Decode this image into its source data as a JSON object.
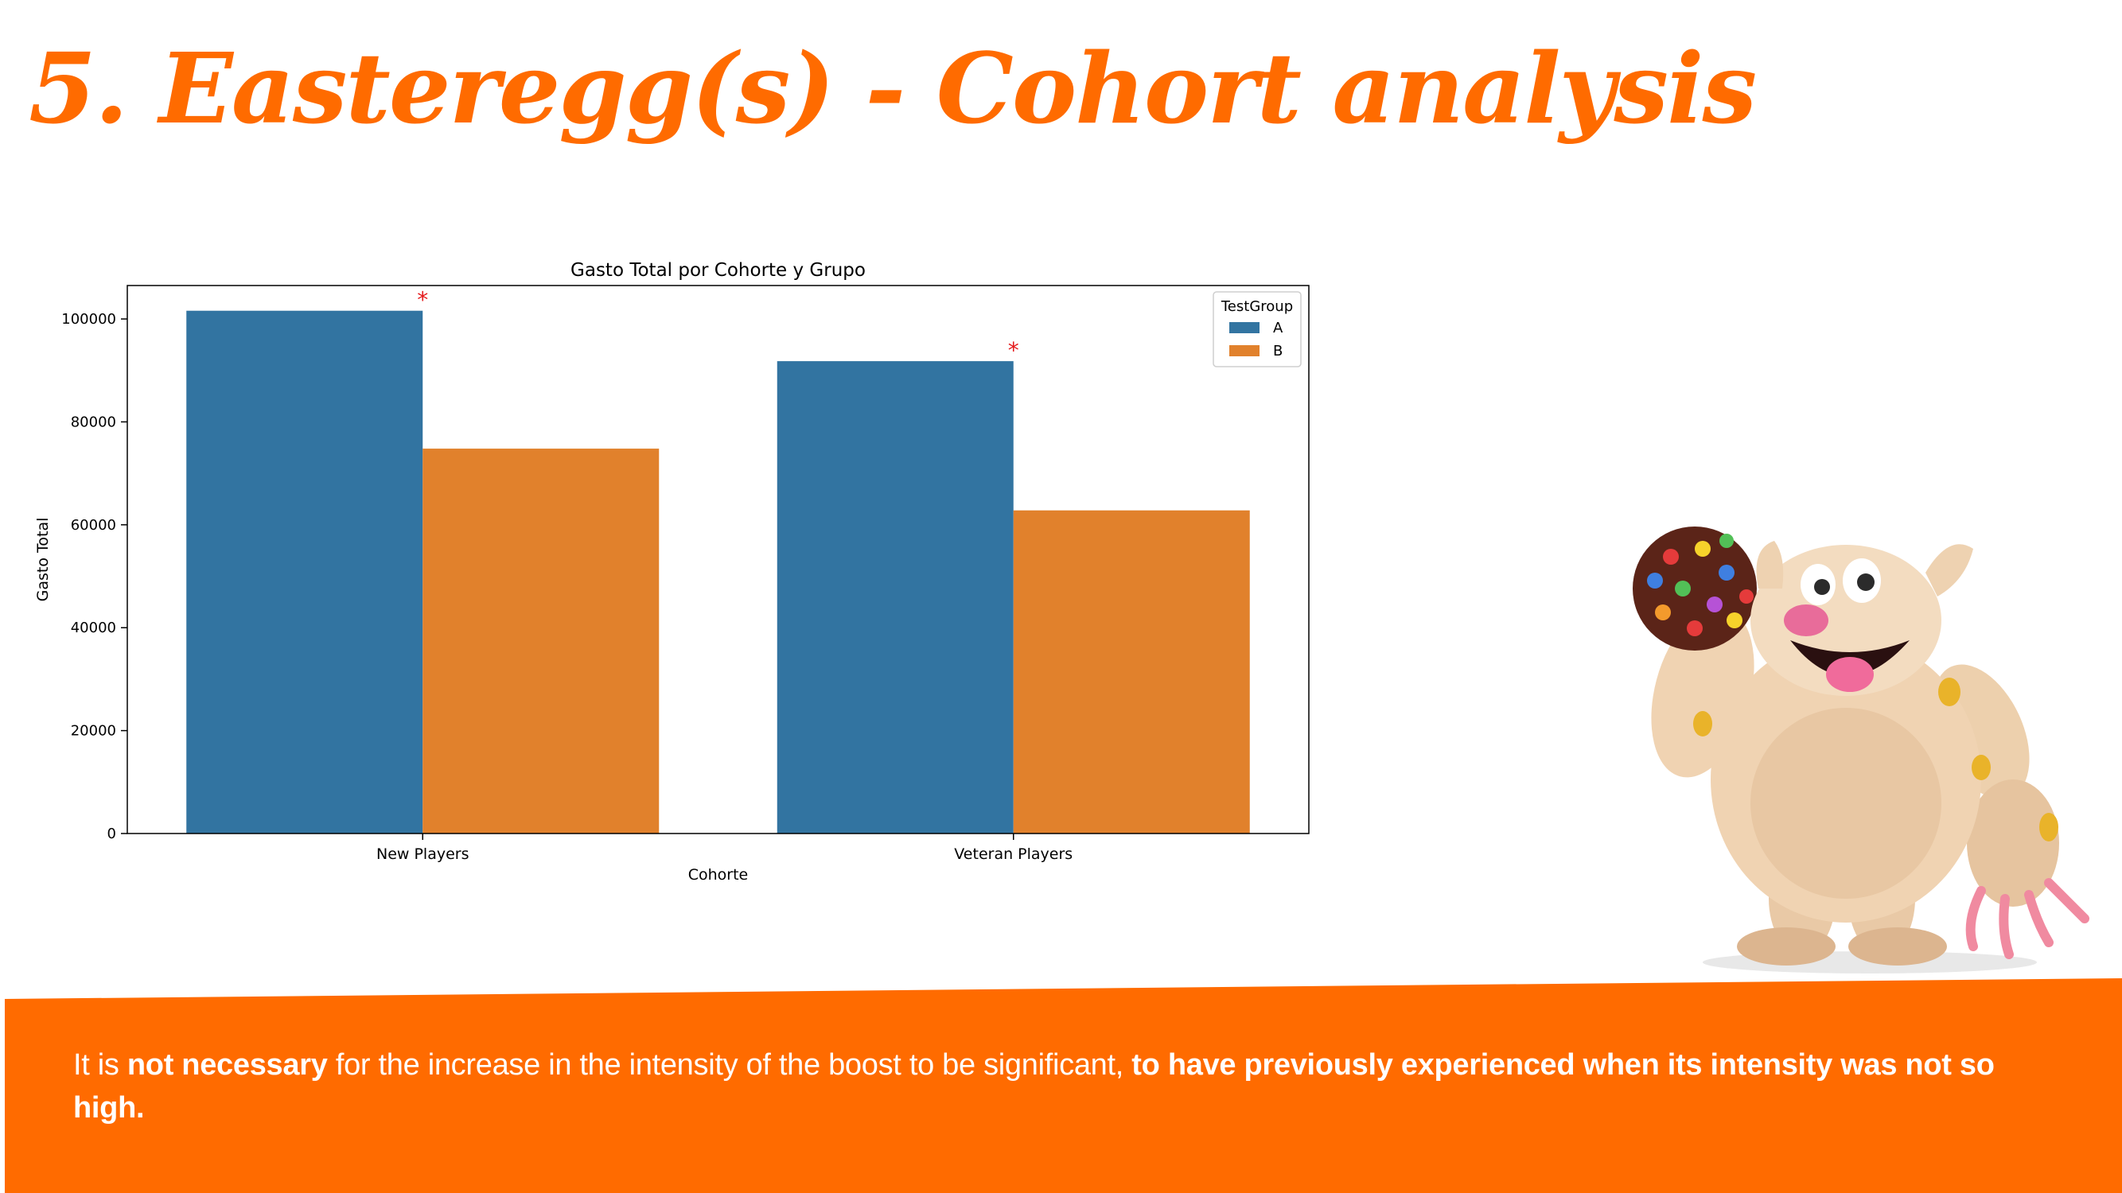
{
  "slide": {
    "title": "5. Easteregg(s) - Cohort analysis",
    "accent_color": "#ff6b00",
    "note": {
      "t1": "It is ",
      "b1": "not necessary",
      "t2": " for the increase in the intensity of the boost to be significant, ",
      "b2": "to have previously experienced when its intensity was not so high."
    }
  },
  "mascot": {
    "icon": "candy-yeti-mascot-icon"
  },
  "chart_data": {
    "type": "bar",
    "title": "Gasto Total por Cohorte y Grupo",
    "xlabel": "Cohorte",
    "ylabel": "Gasto Total",
    "categories": [
      "New Players",
      "Veteran Players"
    ],
    "series": [
      {
        "name": "A",
        "color": "#3274a1",
        "values": [
          101600,
          91800
        ],
        "significance": [
          "*",
          "*"
        ]
      },
      {
        "name": "B",
        "color": "#e1812c",
        "values": [
          74800,
          62800
        ],
        "significance": [
          "",
          ""
        ]
      }
    ],
    "ylim": [
      0,
      106500
    ],
    "yticks": [
      0,
      20000,
      40000,
      60000,
      80000,
      100000
    ],
    "ytick_labels": [
      "0",
      "20000",
      "40000",
      "60000",
      "80000",
      "100000"
    ],
    "legend_title": "TestGroup",
    "legend_position": "top-right",
    "marker_color": "#e41a1c",
    "grid": false
  }
}
